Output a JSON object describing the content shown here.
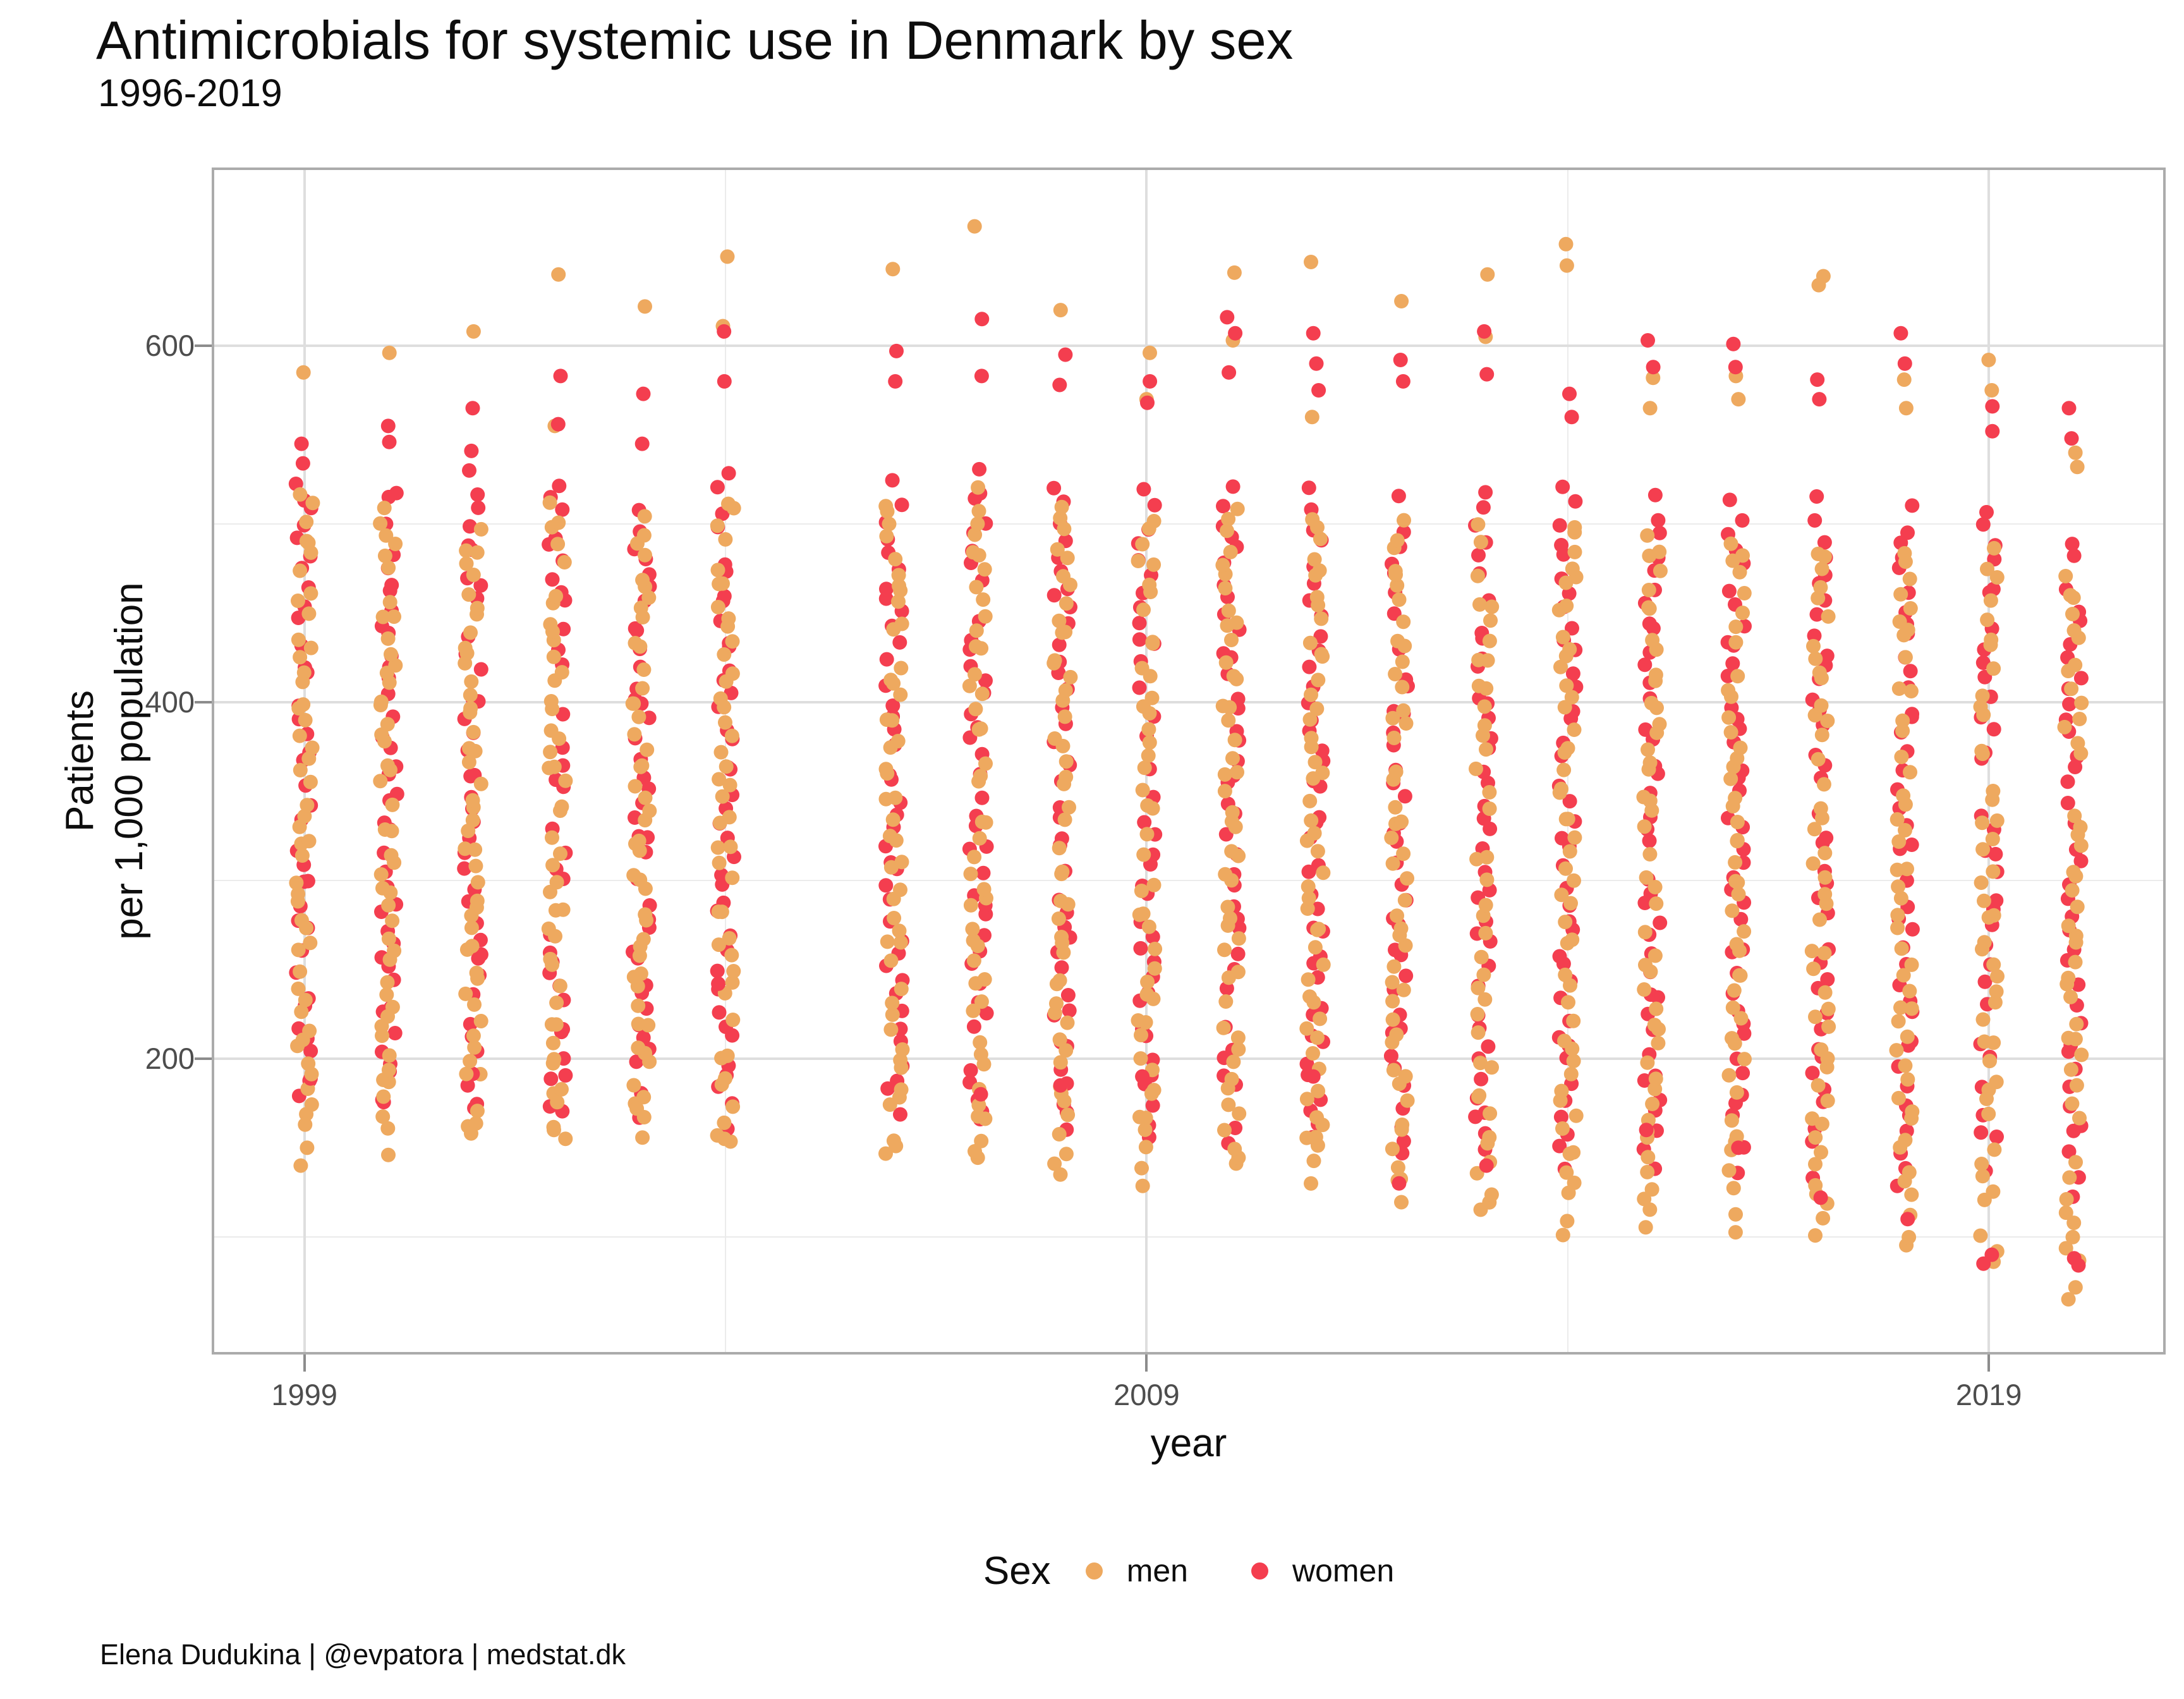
{
  "chart_data": {
    "type": "scatter",
    "title": "Antimicrobials for systemic use in Denmark by sex",
    "subtitle": "1996-2019",
    "xlabel": "year",
    "ylabel_lines": [
      "Patients",
      "per 1,000 population"
    ],
    "caption": "Elena Dudukina | @evpatora | medstat.dk",
    "x_breaks": [
      1999,
      2009,
      2019
    ],
    "x_minor_breaks": [
      2004,
      2014
    ],
    "y_breaks": [
      200,
      400,
      600
    ],
    "y_minor_breaks": [
      100,
      300,
      500
    ],
    "xlim": [
      1997.9,
      2021.1
    ],
    "ylim": [
      34,
      700
    ],
    "grid": "major+minor horizontal and vertical, light gray on white, full gray panel border",
    "point_colors": {
      "men": "#eea95f",
      "women": "#f43e4f"
    },
    "legend": {
      "title": "Sex",
      "position": "bottom",
      "items": [
        {
          "label": "men",
          "color": "#eea95f"
        },
        {
          "label": "women",
          "color": "#f43e4f"
        }
      ]
    },
    "series": [
      {
        "year": 1999,
        "men": {
          "dense": [
            168,
            515
          ],
          "n": 50,
          "top": [
            585
          ],
          "low": [
            140,
            150,
            163
          ]
        },
        "women": {
          "dense": [
            176,
            525
          ],
          "n": 42,
          "top": [
            545,
            534
          ],
          "low": []
        }
      },
      {
        "year": 2000,
        "men": {
          "dense": [
            162,
            508
          ],
          "n": 50,
          "top": [
            596
          ],
          "low": [
            146
          ]
        },
        "women": {
          "dense": [
            172,
            520
          ],
          "n": 42,
          "top": [
            555,
            546
          ],
          "low": []
        }
      },
      {
        "year": 2001,
        "men": {
          "dense": [
            160,
            502
          ],
          "n": 50,
          "top": [
            608
          ],
          "low": [
            158
          ]
        },
        "women": {
          "dense": [
            170,
            515
          ],
          "n": 42,
          "top": [
            565,
            541,
            530
          ],
          "low": []
        }
      },
      {
        "year": 2002,
        "men": {
          "dense": [
            158,
            510
          ],
          "n": 50,
          "top": [
            640,
            555
          ],
          "low": [
            160
          ]
        },
        "women": {
          "dense": [
            168,
            522
          ],
          "n": 42,
          "top": [
            583,
            556
          ],
          "low": []
        }
      },
      {
        "year": 2003,
        "men": {
          "dense": [
            160,
            500
          ],
          "n": 50,
          "top": [
            622
          ],
          "low": [
            172
          ]
        },
        "women": {
          "dense": [
            170,
            512
          ],
          "n": 42,
          "top": [
            573,
            545
          ],
          "low": []
        }
      },
      {
        "year": 2004,
        "men": {
          "dense": [
            152,
            515
          ],
          "n": 50,
          "top": [
            650,
            611
          ],
          "low": [
            155
          ]
        },
        "women": {
          "dense": [
            165,
            525
          ],
          "n": 42,
          "top": [
            608,
            580
          ],
          "low": []
        }
      },
      {
        "year": 2006,
        "men": {
          "dense": [
            150,
            512
          ],
          "n": 50,
          "top": [
            643
          ],
          "low": [
            151
          ]
        },
        "women": {
          "dense": [
            163,
            520
          ],
          "n": 42,
          "top": [
            597,
            580
          ],
          "low": []
        }
      },
      {
        "year": 2007,
        "men": {
          "dense": [
            148,
            518
          ],
          "n": 50,
          "top": [
            667
          ],
          "low": [
            148
          ]
        },
        "women": {
          "dense": [
            162,
            528
          ],
          "n": 42,
          "top": [
            615,
            583
          ],
          "low": [
            180
          ]
        }
      },
      {
        "year": 2008,
        "men": {
          "dense": [
            143,
            510
          ],
          "n": 50,
          "top": [
            620
          ],
          "low": [
            135
          ]
        },
        "women": {
          "dense": [
            160,
            520
          ],
          "n": 42,
          "top": [
            595,
            578
          ],
          "low": [
            185
          ]
        }
      },
      {
        "year": 2009,
        "men": {
          "dense": [
            133,
            505
          ],
          "n": 50,
          "top": [
            596,
            570
          ],
          "low": []
        },
        "women": {
          "dense": [
            158,
            518
          ],
          "n": 42,
          "top": [
            580,
            568
          ],
          "low": [
            190
          ]
        }
      },
      {
        "year": 2010,
        "men": {
          "dense": [
            138,
            508
          ],
          "n": 50,
          "top": [
            641,
            603
          ],
          "low": []
        },
        "women": {
          "dense": [
            155,
            520
          ],
          "n": 42,
          "top": [
            616,
            607,
            585
          ],
          "low": []
        }
      },
      {
        "year": 2011,
        "men": {
          "dense": [
            132,
            505
          ],
          "n": 50,
          "top": [
            647,
            560
          ],
          "low": [
            156
          ]
        },
        "women": {
          "dense": [
            152,
            518
          ],
          "n": 42,
          "top": [
            607,
            590,
            575
          ],
          "low": [
            190
          ]
        }
      },
      {
        "year": 2012,
        "men": {
          "dense": [
            120,
            500
          ],
          "n": 50,
          "top": [
            625
          ],
          "low": []
        },
        "women": {
          "dense": [
            148,
            515
          ],
          "n": 42,
          "top": [
            592,
            580
          ],
          "low": [
            130
          ]
        }
      },
      {
        "year": 2013,
        "men": {
          "dense": [
            112,
            498
          ],
          "n": 50,
          "top": [
            640,
            605
          ],
          "low": []
        },
        "women": {
          "dense": [
            145,
            515
          ],
          "n": 42,
          "top": [
            608,
            584
          ],
          "low": [
            140
          ]
        }
      },
      {
        "year": 2014,
        "men": {
          "dense": [
            105,
            502
          ],
          "n": 52,
          "top": [
            657,
            645
          ],
          "low": []
        },
        "women": {
          "dense": [
            142,
            518
          ],
          "n": 42,
          "top": [
            573,
            560
          ],
          "low": []
        }
      },
      {
        "year": 2015,
        "men": {
          "dense": [
            108,
            495
          ],
          "n": 52,
          "top": [
            582,
            565
          ],
          "low": []
        },
        "women": {
          "dense": [
            140,
            512
          ],
          "n": 42,
          "top": [
            603,
            588
          ],
          "low": [
            160
          ]
        }
      },
      {
        "year": 2016,
        "men": {
          "dense": [
            107,
            492
          ],
          "n": 52,
          "top": [
            583,
            570
          ],
          "low": []
        },
        "women": {
          "dense": [
            138,
            510
          ],
          "n": 42,
          "top": [
            601,
            588
          ],
          "low": [
            150
          ]
        }
      },
      {
        "year": 2017,
        "men": {
          "dense": [
            100,
            495
          ],
          "n": 52,
          "top": [
            639,
            634
          ],
          "low": []
        },
        "women": {
          "dense": [
            135,
            512
          ],
          "n": 42,
          "top": [
            581,
            570
          ],
          "low": [
            122
          ]
        }
      },
      {
        "year": 2018,
        "men": {
          "dense": [
            93,
            488
          ],
          "n": 52,
          "top": [
            581,
            565
          ],
          "low": []
        },
        "women": {
          "dense": [
            130,
            508
          ],
          "n": 42,
          "top": [
            607,
            590
          ],
          "low": [
            110
          ]
        }
      },
      {
        "year": 2019,
        "men": {
          "dense": [
            88,
            485
          ],
          "n": 52,
          "top": [
            592,
            575
          ],
          "low": []
        },
        "women": {
          "dense": [
            125,
            505
          ],
          "n": 42,
          "top": [
            566,
            552
          ],
          "low": [
            90,
            85
          ]
        }
      },
      {
        "year": 2020,
        "men": {
          "dense": [
            75,
            472
          ],
          "n": 52,
          "top": [
            540,
            532
          ],
          "low": [
            65
          ]
        },
        "women": {
          "dense": [
            120,
            490
          ],
          "n": 42,
          "top": [
            565,
            548
          ],
          "low": [
            88,
            84
          ]
        }
      }
    ]
  }
}
